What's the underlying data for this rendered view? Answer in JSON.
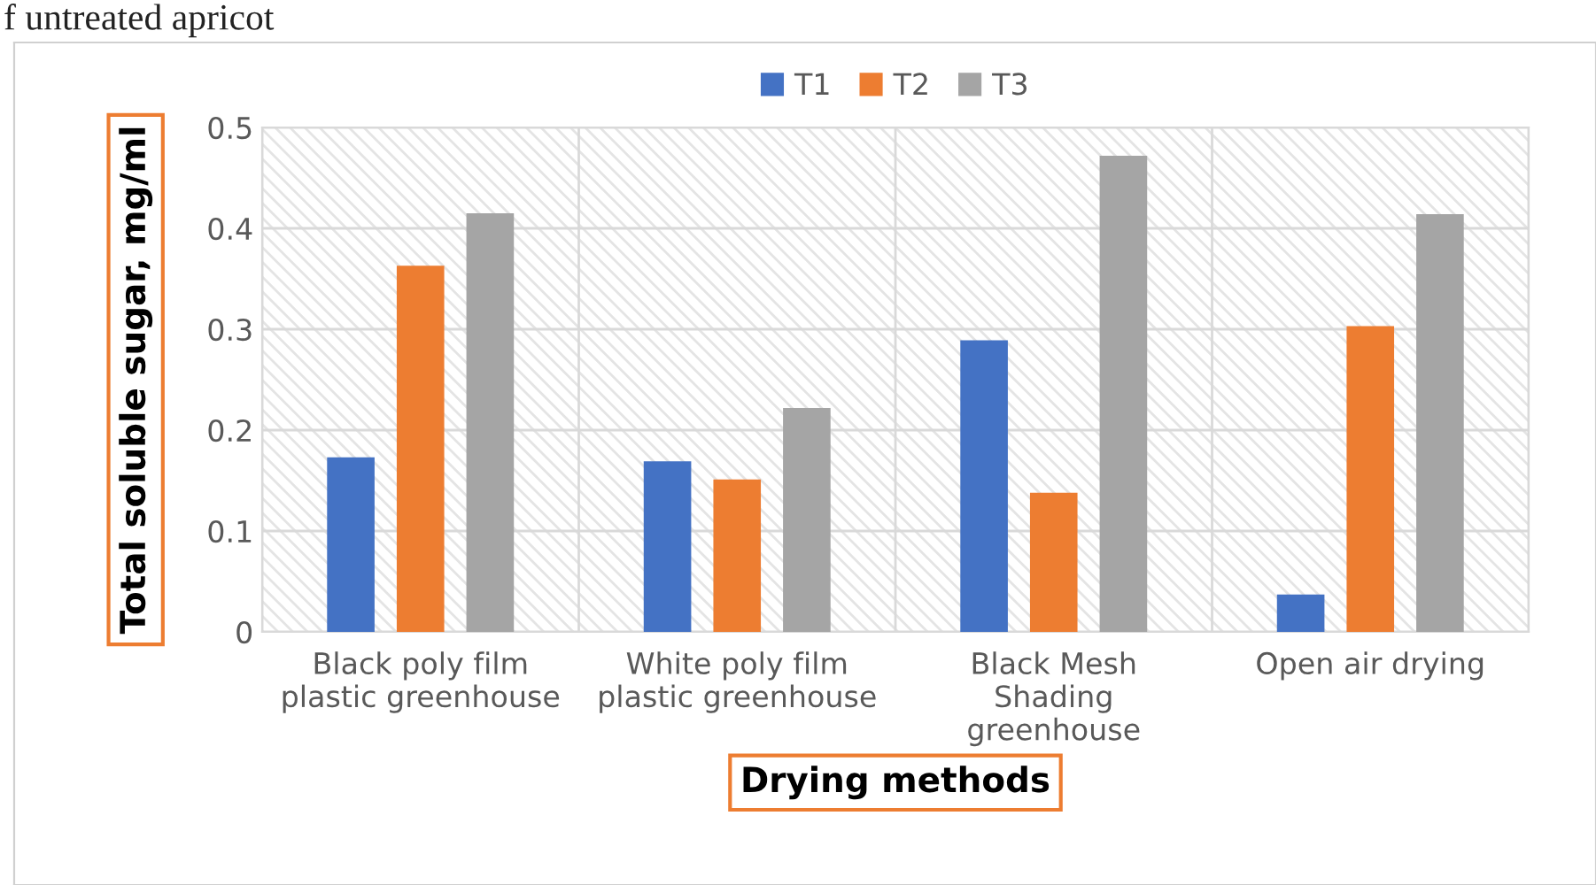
{
  "chart_data": {
    "type": "bar",
    "annotations": [
      "f untreated apricot"
    ],
    "xlabel": "Drying methods",
    "ylabel": "Total soluble sugar, mg/ml",
    "categories": [
      "Black poly film\nplastic greenhouse",
      "White poly film\nplastic greenhouse",
      "Black Mesh\nShading\ngreenhouse",
      "Open air drying"
    ],
    "series": [
      {
        "name": "T1",
        "color": "#4472c4",
        "values": [
          0.173,
          0.169,
          0.289,
          0.037
        ]
      },
      {
        "name": "T2",
        "color": "#ed7d31",
        "values": [
          0.363,
          0.151,
          0.138,
          0.303
        ]
      },
      {
        "name": "T3",
        "color": "#a5a5a5",
        "values": [
          0.415,
          0.222,
          0.472,
          0.414
        ]
      }
    ],
    "ylim": [
      0,
      0.5
    ],
    "yticks": [
      0,
      0.1,
      0.2,
      0.3,
      0.4,
      0.5
    ],
    "grid": true,
    "legend": "top"
  }
}
